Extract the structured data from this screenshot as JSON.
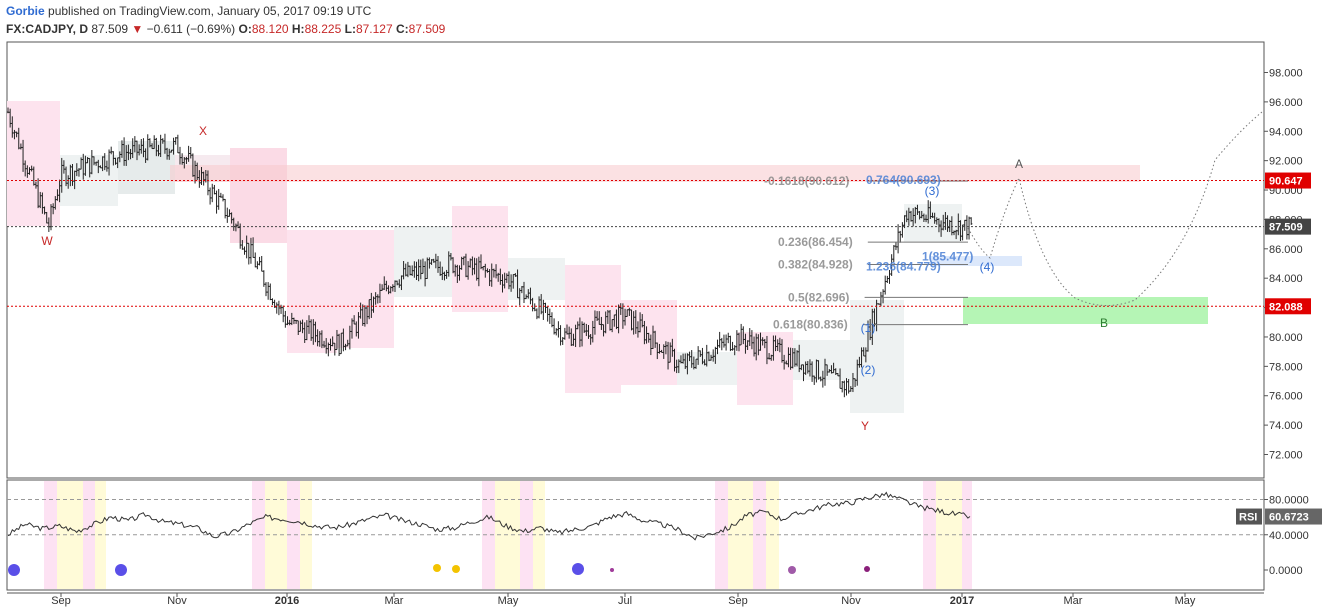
{
  "header": {
    "author": "Gorbie",
    "published_text": "published on TradingView.com, January 05, 2017 09:19 UTC",
    "symbol": "FX:CADJPY, D",
    "last": "87.509",
    "change": "−0.611 (−0.69%)",
    "open_label": "O:",
    "open": "88.120",
    "high_label": "H:",
    "high": "88.225",
    "low_label": "L:",
    "low": "87.127",
    "close_label": "C:",
    "close": "87.509"
  },
  "colors": {
    "down": "#c62828",
    "fib_gray": "#888888",
    "fib_blue": "#4a7fd4",
    "rsi_line": "#333333",
    "target_zone": "#9cf29c",
    "resist_zone": "#f8c8cc"
  },
  "chart_data": {
    "type": "ohlc",
    "price_axis": {
      "ticks": [
        "98.000",
        "96.000",
        "94.000",
        "92.000",
        "90.000",
        "88.000",
        "86.000",
        "84.000",
        "82.000",
        "80.000",
        "78.000",
        "76.000",
        "74.000",
        "72.000"
      ],
      "ylim": [
        70.6,
        99.5
      ]
    },
    "time_axis": {
      "labels": [
        "Sep",
        "Nov",
        "2016",
        "Mar",
        "May",
        "Jul",
        "Sep",
        "Nov",
        "2017",
        "Mar",
        "May"
      ]
    },
    "price_markers": [
      {
        "label": "90.647",
        "value": 90.647,
        "color": "#e00000"
      },
      {
        "label": "87.509",
        "value": 87.509,
        "color": "#444444"
      },
      {
        "label": "82.088",
        "value": 82.088,
        "color": "#e00000"
      }
    ],
    "series": [
      {
        "date": "2015-08",
        "close": 95.5
      },
      {
        "date": "2015-08-24",
        "close": 87.5
      },
      {
        "date": "2015-09",
        "close": 91.0
      },
      {
        "date": "2015-10",
        "close": 92.5
      },
      {
        "date": "2015-11",
        "close": 93.0
      },
      {
        "date": "2015-12",
        "close": 88.0
      },
      {
        "date": "2016-01",
        "close": 81.0
      },
      {
        "date": "2016-02",
        "close": 79.5
      },
      {
        "date": "2016-03",
        "close": 84.0
      },
      {
        "date": "2016-04",
        "close": 85.0
      },
      {
        "date": "2016-05",
        "close": 84.0
      },
      {
        "date": "2016-06",
        "close": 80.0
      },
      {
        "date": "2016-07",
        "close": 81.5
      },
      {
        "date": "2016-08",
        "close": 78.0
      },
      {
        "date": "2016-09",
        "close": 80.0
      },
      {
        "date": "2016-10",
        "close": 78.5
      },
      {
        "date": "2016-11",
        "close": 76.5
      },
      {
        "date": "2016-12",
        "close": 88.5
      },
      {
        "date": "2017-01",
        "close": 87.5
      }
    ],
    "wave_labels": [
      {
        "text": "W",
        "color": "#c62828"
      },
      {
        "text": "X",
        "color": "#c62828"
      },
      {
        "text": "Y",
        "color": "#c62828"
      },
      {
        "text": "A",
        "color": "#555555"
      },
      {
        "text": "B",
        "color": "#2e7d32"
      },
      {
        "text": "(1)",
        "color": "#2f6bd1"
      },
      {
        "text": "(2)",
        "color": "#2f6bd1"
      },
      {
        "text": "(3)",
        "color": "#2f6bd1"
      },
      {
        "text": "(4)",
        "color": "#2f6bd1"
      }
    ],
    "fib_levels": [
      {
        "text": "-0.1618(90.612)",
        "value": 90.612,
        "color": "#888888"
      },
      {
        "text": "0.764(90.693)",
        "value": 90.693,
        "color": "#4a7fd4"
      },
      {
        "text": "0.236(86.454)",
        "value": 86.454,
        "color": "#888888"
      },
      {
        "text": "1(85.477)",
        "value": 85.477,
        "color": "#4a7fd4"
      },
      {
        "text": "0.382(84.928)",
        "value": 84.928,
        "color": "#888888"
      },
      {
        "text": "1.236(84.779)",
        "value": 84.779,
        "color": "#4a7fd4"
      },
      {
        "text": "0.5(82.696)",
        "value": 82.696,
        "color": "#888888"
      },
      {
        "text": "0.618(80.836)",
        "value": 80.836,
        "color": "#888888"
      }
    ],
    "rsi": {
      "label": "RSI",
      "value": "60.6723",
      "ticks": [
        "80.0000",
        "40.0000",
        "0.0000"
      ],
      "ylim": [
        -20,
        100
      ],
      "series": [
        40,
        52,
        47,
        50,
        44,
        52,
        60,
        56,
        63,
        55,
        52,
        48,
        38,
        42,
        52,
        60,
        58,
        55,
        50,
        48,
        52,
        58,
        62,
        56,
        52,
        46,
        48,
        55,
        60,
        50,
        44,
        48,
        42,
        46,
        50,
        60,
        64,
        56,
        52,
        46,
        36,
        42,
        48,
        62,
        66,
        58,
        64,
        70,
        75,
        76,
        82,
        86,
        80,
        72,
        68,
        64,
        60.67
      ]
    }
  }
}
